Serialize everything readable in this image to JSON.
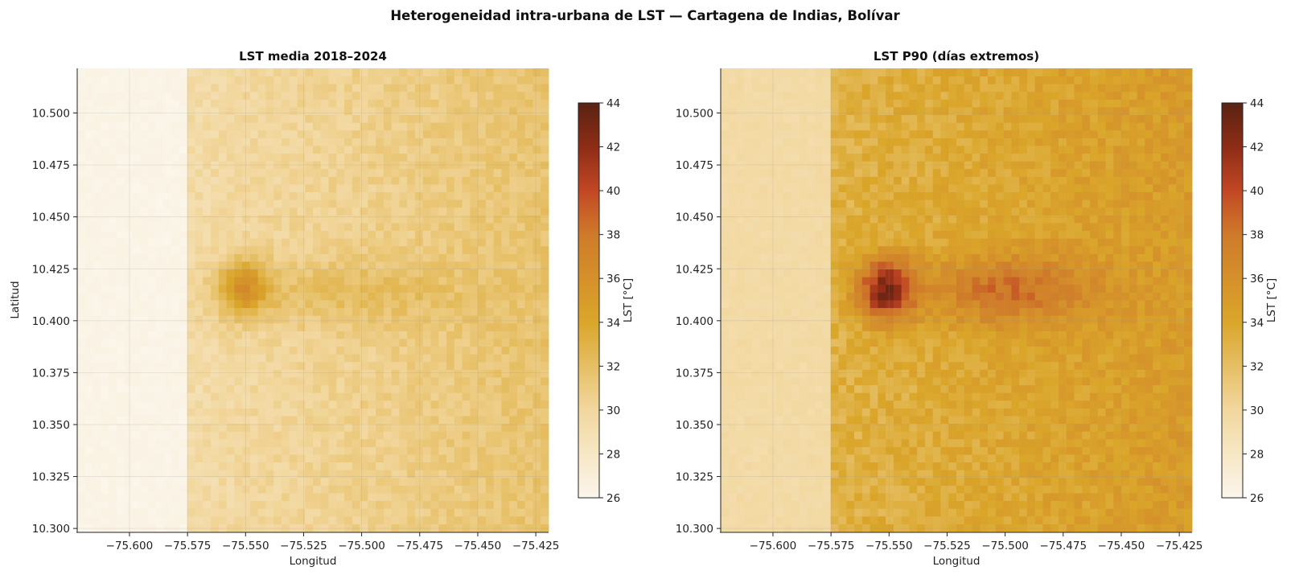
{
  "chart_data": {
    "type": "heatmap",
    "title": "Heterogeneidad intra-urbana de LST — Cartagena de Indias, Bolívar",
    "colorscale": {
      "stops": [
        {
          "value": 26,
          "color": "#fbf6ec"
        },
        {
          "value": 30,
          "color": "#f2d79e"
        },
        {
          "value": 34,
          "color": "#daa62a"
        },
        {
          "value": 38,
          "color": "#cf7a2a"
        },
        {
          "value": 40,
          "color": "#c24724"
        },
        {
          "value": 42,
          "color": "#8e2c16"
        },
        {
          "value": 44,
          "color": "#5a2212"
        }
      ]
    },
    "grid": true,
    "panels": [
      {
        "title": "LST media 2018–2024",
        "xlabel": "Longitud",
        "ylabel": "Latitud",
        "xlim": [
          -75.6225,
          -75.4195
        ],
        "ylim": [
          10.2985,
          10.5215
        ],
        "xticks": [
          -75.6,
          -75.575,
          -75.55,
          -75.525,
          -75.5,
          -75.475,
          -75.45,
          -75.425
        ],
        "xtick_labels": [
          "−75.600",
          "−75.575",
          "−75.550",
          "−75.525",
          "−75.500",
          "−75.475",
          "−75.450",
          "−75.425"
        ],
        "yticks": [
          10.3,
          10.325,
          10.35,
          10.375,
          10.4,
          10.425,
          10.45,
          10.475,
          10.5
        ],
        "ytick_labels": [
          "10.300",
          "10.325",
          "10.350",
          "10.375",
          "10.400",
          "10.425",
          "10.450",
          "10.475",
          "10.500"
        ],
        "colorbar_label": "LST [°C]",
        "colorbar_range": [
          26,
          44
        ],
        "colorbar_ticks": [
          "26",
          "28",
          "30",
          "32",
          "34",
          "36",
          "38",
          "40",
          "42",
          "44"
        ],
        "field": {
          "grid_size": [
            60,
            60
          ],
          "sea_value": 26.3,
          "coast_longitude": -75.5755,
          "land_base": 29.5,
          "east_gradient": 2.2,
          "noise_amplitude": 0.7,
          "hotspots": [
            {
              "lon": -75.551,
              "lat": 10.416,
              "peak": 5.3,
              "sigma_lon": 0.0075,
              "sigma_lat": 0.0095
            },
            {
              "lon": -75.515,
              "lat": 10.414,
              "peak": 1.7,
              "sigma_lon": 0.04,
              "sigma_lat": 0.011
            }
          ]
        }
      },
      {
        "title": "LST P90 (días extremos)",
        "xlabel": "Longitud",
        "ylabel": "",
        "xlim": [
          -75.6225,
          -75.4195
        ],
        "ylim": [
          10.2985,
          10.5215
        ],
        "xticks": [
          -75.6,
          -75.575,
          -75.55,
          -75.525,
          -75.5,
          -75.475,
          -75.45,
          -75.425
        ],
        "xtick_labels": [
          "−75.600",
          "−75.575",
          "−75.550",
          "−75.525",
          "−75.500",
          "−75.475",
          "−75.450",
          "−75.425"
        ],
        "yticks": [
          10.3,
          10.325,
          10.35,
          10.375,
          10.4,
          10.425,
          10.45,
          10.475,
          10.5
        ],
        "ytick_labels": [
          "10.300",
          "10.325",
          "10.350",
          "10.375",
          "10.400",
          "10.425",
          "10.450",
          "10.475",
          "10.500"
        ],
        "colorbar_label": "LST [°C]",
        "colorbar_range": [
          26,
          44
        ],
        "colorbar_ticks": [
          "26",
          "28",
          "30",
          "32",
          "34",
          "36",
          "38",
          "40",
          "42",
          "44"
        ],
        "field": {
          "grid_size": [
            60,
            60
          ],
          "sea_value": 29.6,
          "coast_longitude": -75.5755,
          "land_base": 33.0,
          "east_gradient": 2.0,
          "noise_amplitude": 1.0,
          "hotspots": [
            {
              "lon": -75.5515,
              "lat": 10.415,
              "peak": 9.0,
              "sigma_lon": 0.0085,
              "sigma_lat": 0.0105
            },
            {
              "lon": -75.5,
              "lat": 10.415,
              "peak": 4.5,
              "sigma_lon": 0.026,
              "sigma_lat": 0.012
            }
          ]
        }
      }
    ]
  }
}
